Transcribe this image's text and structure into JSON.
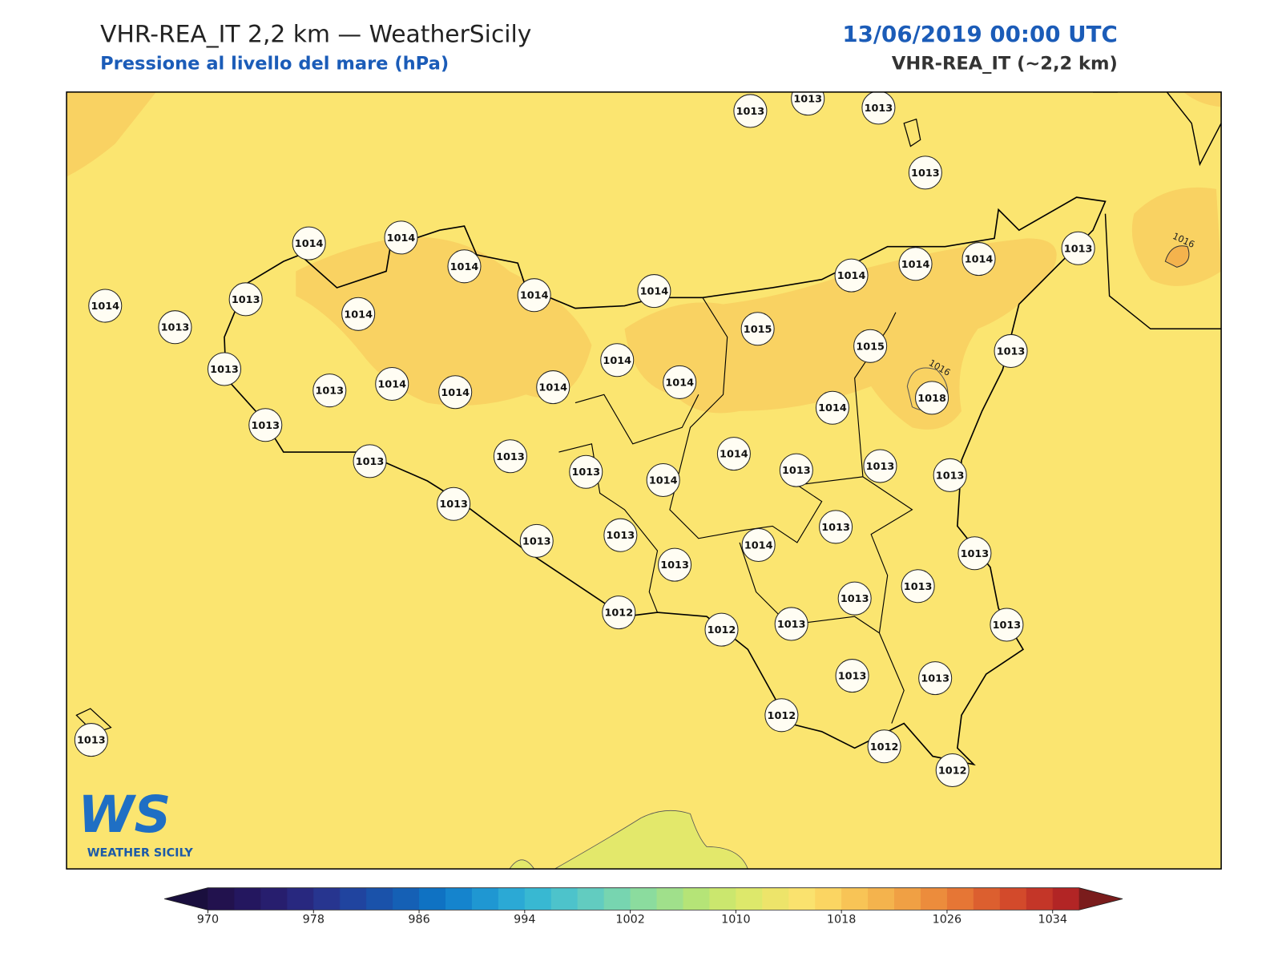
{
  "header": {
    "title": "VHR-REA_IT 2,2 km — WeatherSicily",
    "subtitle": "Pressione al livello del mare (hPa)",
    "datetime": "13/06/2019 00:00 UTC",
    "model": "VHR-REA_IT (~2,2 km)"
  },
  "stations": [
    1013,
    1013,
    1013,
    1013,
    1014,
    1014,
    1014,
    1014,
    1013,
    1013,
    1014,
    1014,
    1014,
    1014,
    1014,
    1014,
    1013,
    1015,
    1015,
    1013,
    1014,
    1013,
    1013,
    1014,
    1014,
    1014,
    1014,
    1018,
    1014,
    1013,
    1013,
    1013,
    1014,
    1013,
    1014,
    1013,
    1013,
    1013,
    1013,
    1013,
    1013,
    1013,
    1014,
    1013,
    1013,
    1013,
    1013,
    1012,
    1012,
    1013,
    1013,
    1013,
    1013,
    1012,
    1012,
    1012,
    1013
  ],
  "contour_labels": [
    "1016",
    "1016"
  ],
  "logo": {
    "mark": "WS",
    "name": "WEATHER SICILY"
  },
  "colorbar": {
    "lim": [
      970,
      1036
    ],
    "ticks": [
      970,
      978,
      986,
      994,
      1002,
      1010,
      1018,
      1026,
      1034
    ],
    "under_color": "#1a0f3e",
    "over_color": "#7a1c1c",
    "colors": [
      "#22124e",
      "#24175f",
      "#271e6e",
      "#28287f",
      "#27358f",
      "#20449f",
      "#1a52aa",
      "#1560b5",
      "#0f72c3",
      "#1584cd",
      "#1f97d2",
      "#2ba9d5",
      "#38b8d2",
      "#4dc3cb",
      "#62ccc0",
      "#77d5b0",
      "#8bdc9e",
      "#a0e08b",
      "#b5e477",
      "#cbe76e",
      "#dde86b",
      "#ede46a",
      "#fae26e",
      "#fbd562",
      "#f8c456",
      "#f4b34d",
      "#f0a044",
      "#ec8c3c",
      "#e67635",
      "#dc5f2f",
      "#d34a2b",
      "#c43628",
      "#b22525"
    ]
  }
}
